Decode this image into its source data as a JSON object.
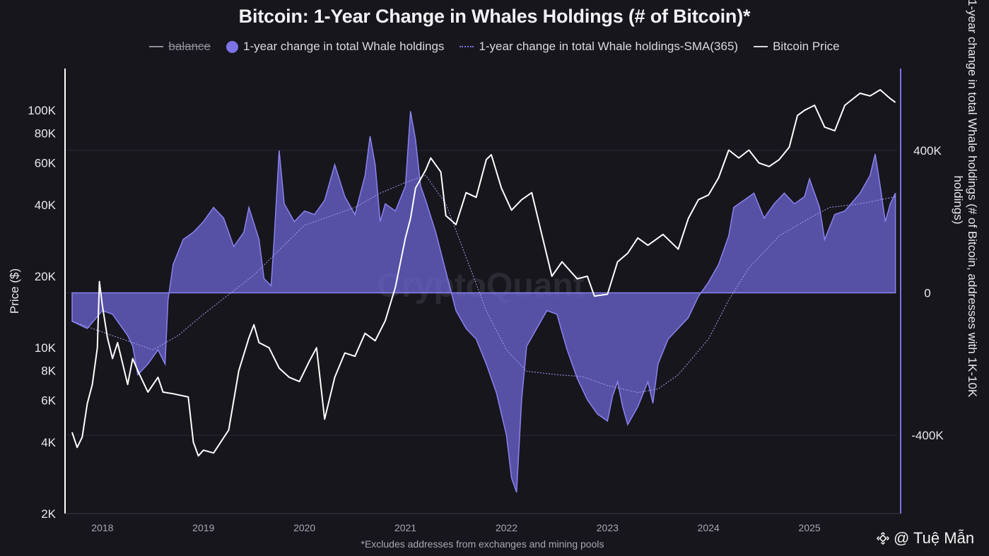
{
  "title": "Bitcoin: 1-Year Change in Whales Holdings (# of Bitcoin)*",
  "legend": [
    {
      "label": "balance",
      "marker": "line",
      "color": "#8e8e98",
      "disabled": true
    },
    {
      "label": "1-year change in total Whale holdings",
      "marker": "dot",
      "color": "#7b73e6"
    },
    {
      "label": "1-year change in total Whale holdings-SMA(365)",
      "marker": "dotted-line",
      "color": "#7b73e6"
    },
    {
      "label": "Bitcoin Price",
      "marker": "line",
      "color": "#ffffff"
    }
  ],
  "footnote": "*Excludes addresses from exchanges and mining pools",
  "watermark": "CryptoQuant",
  "brand": "@ Tuệ Mẫn",
  "colors": {
    "background": "#17161c",
    "area": "#6f68d9",
    "price": "#ffffff",
    "sma": "#8f88f0",
    "grid": "#2a2932"
  },
  "chart_data": {
    "type": "area",
    "x_axis": {
      "ticks": [
        "2018",
        "2019",
        "2020",
        "2021",
        "2022",
        "2023",
        "2024",
        "2025"
      ],
      "range": [
        "2017-09",
        "2025-11"
      ]
    },
    "y_left": {
      "label": "Price ($)",
      "scale": "log",
      "range": [
        2000,
        150000
      ],
      "ticks": [
        {
          "v": 2000,
          "t": "2K"
        },
        {
          "v": 4000,
          "t": "4K"
        },
        {
          "v": 6000,
          "t": "6K"
        },
        {
          "v": 8000,
          "t": "8K"
        },
        {
          "v": 10000,
          "t": "10K"
        },
        {
          "v": 20000,
          "t": "20K"
        },
        {
          "v": 40000,
          "t": "40K"
        },
        {
          "v": 60000,
          "t": "60K"
        },
        {
          "v": 80000,
          "t": "80K"
        },
        {
          "v": 100000,
          "t": "100K"
        }
      ]
    },
    "y_right": {
      "label": "1-year change in total Whale holdings (# of Bitcoin, addresses with 1K-10K holdings)",
      "range": [
        -620000,
        630000
      ],
      "ticks": [
        {
          "v": 400000,
          "t": "400K"
        },
        {
          "v": 0,
          "t": "0"
        },
        {
          "v": -400000,
          "t": "-400K"
        }
      ]
    },
    "grid": "horizontal",
    "series": [
      {
        "name": "1-year change in total Whale holdings",
        "type": "area",
        "axis": "right",
        "points": [
          [
            2017.7,
            -80000
          ],
          [
            2017.85,
            -100000
          ],
          [
            2018.0,
            -50000
          ],
          [
            2018.1,
            -60000
          ],
          [
            2018.25,
            -120000
          ],
          [
            2018.3,
            -150000
          ],
          [
            2018.35,
            -230000
          ],
          [
            2018.45,
            -200000
          ],
          [
            2018.55,
            -160000
          ],
          [
            2018.62,
            -200000
          ],
          [
            2018.65,
            -20000
          ],
          [
            2018.7,
            80000
          ],
          [
            2018.8,
            150000
          ],
          [
            2018.9,
            170000
          ],
          [
            2019.0,
            200000
          ],
          [
            2019.05,
            220000
          ],
          [
            2019.1,
            240000
          ],
          [
            2019.2,
            210000
          ],
          [
            2019.3,
            130000
          ],
          [
            2019.4,
            170000
          ],
          [
            2019.45,
            240000
          ],
          [
            2019.55,
            150000
          ],
          [
            2019.6,
            40000
          ],
          [
            2019.67,
            20000
          ],
          [
            2019.7,
            150000
          ],
          [
            2019.75,
            400000
          ],
          [
            2019.8,
            250000
          ],
          [
            2019.9,
            200000
          ],
          [
            2020.0,
            230000
          ],
          [
            2020.1,
            220000
          ],
          [
            2020.2,
            260000
          ],
          [
            2020.3,
            360000
          ],
          [
            2020.4,
            270000
          ],
          [
            2020.5,
            220000
          ],
          [
            2020.6,
            330000
          ],
          [
            2020.65,
            440000
          ],
          [
            2020.7,
            360000
          ],
          [
            2020.75,
            200000
          ],
          [
            2020.8,
            250000
          ],
          [
            2020.9,
            230000
          ],
          [
            2021.0,
            300000
          ],
          [
            2021.05,
            510000
          ],
          [
            2021.1,
            430000
          ],
          [
            2021.15,
            300000
          ],
          [
            2021.2,
            260000
          ],
          [
            2021.3,
            170000
          ],
          [
            2021.4,
            60000
          ],
          [
            2021.5,
            -50000
          ],
          [
            2021.6,
            -100000
          ],
          [
            2021.7,
            -130000
          ],
          [
            2021.8,
            -200000
          ],
          [
            2021.9,
            -280000
          ],
          [
            2022.0,
            -400000
          ],
          [
            2022.05,
            -520000
          ],
          [
            2022.1,
            -560000
          ],
          [
            2022.15,
            -300000
          ],
          [
            2022.2,
            -150000
          ],
          [
            2022.3,
            -100000
          ],
          [
            2022.4,
            -50000
          ],
          [
            2022.5,
            -60000
          ],
          [
            2022.55,
            -110000
          ],
          [
            2022.6,
            -160000
          ],
          [
            2022.7,
            -240000
          ],
          [
            2022.8,
            -300000
          ],
          [
            2022.9,
            -340000
          ],
          [
            2023.0,
            -360000
          ],
          [
            2023.05,
            -290000
          ],
          [
            2023.1,
            -250000
          ],
          [
            2023.15,
            -320000
          ],
          [
            2023.2,
            -370000
          ],
          [
            2023.3,
            -320000
          ],
          [
            2023.4,
            -250000
          ],
          [
            2023.45,
            -310000
          ],
          [
            2023.5,
            -200000
          ],
          [
            2023.6,
            -130000
          ],
          [
            2023.7,
            -100000
          ],
          [
            2023.8,
            -70000
          ],
          [
            2023.9,
            -10000
          ],
          [
            2024.0,
            30000
          ],
          [
            2024.1,
            80000
          ],
          [
            2024.2,
            160000
          ],
          [
            2024.25,
            240000
          ],
          [
            2024.35,
            260000
          ],
          [
            2024.45,
            280000
          ],
          [
            2024.55,
            210000
          ],
          [
            2024.65,
            250000
          ],
          [
            2024.75,
            280000
          ],
          [
            2024.85,
            250000
          ],
          [
            2024.95,
            270000
          ],
          [
            2025.0,
            320000
          ],
          [
            2025.1,
            240000
          ],
          [
            2025.15,
            150000
          ],
          [
            2025.25,
            220000
          ],
          [
            2025.35,
            230000
          ],
          [
            2025.5,
            280000
          ],
          [
            2025.6,
            330000
          ],
          [
            2025.65,
            390000
          ],
          [
            2025.7,
            300000
          ],
          [
            2025.75,
            200000
          ],
          [
            2025.8,
            250000
          ],
          [
            2025.85,
            280000
          ]
        ]
      },
      {
        "name": "1-year change in total Whale holdings-SMA(365)",
        "type": "line",
        "axis": "right",
        "points": [
          [
            2017.7,
            -80000
          ],
          [
            2018.0,
            -110000
          ],
          [
            2018.5,
            -160000
          ],
          [
            2018.75,
            -120000
          ],
          [
            2019.0,
            -60000
          ],
          [
            2019.5,
            50000
          ],
          [
            2019.75,
            120000
          ],
          [
            2020.0,
            190000
          ],
          [
            2020.5,
            240000
          ],
          [
            2020.75,
            280000
          ],
          [
            2021.0,
            310000
          ],
          [
            2021.2,
            330000
          ],
          [
            2021.4,
            250000
          ],
          [
            2021.6,
            100000
          ],
          [
            2021.8,
            -50000
          ],
          [
            2022.0,
            -160000
          ],
          [
            2022.2,
            -220000
          ],
          [
            2022.5,
            -230000
          ],
          [
            2022.75,
            -235000
          ],
          [
            2023.0,
            -260000
          ],
          [
            2023.3,
            -280000
          ],
          [
            2023.5,
            -270000
          ],
          [
            2023.7,
            -230000
          ],
          [
            2024.0,
            -130000
          ],
          [
            2024.2,
            -20000
          ],
          [
            2024.4,
            70000
          ],
          [
            2024.7,
            160000
          ],
          [
            2025.0,
            210000
          ],
          [
            2025.2,
            240000
          ],
          [
            2025.5,
            250000
          ],
          [
            2025.85,
            270000
          ]
        ]
      },
      {
        "name": "Bitcoin Price",
        "type": "line",
        "axis": "left",
        "points": [
          [
            2017.7,
            4400
          ],
          [
            2017.75,
            3800
          ],
          [
            2017.8,
            4200
          ],
          [
            2017.85,
            5800
          ],
          [
            2017.9,
            7000
          ],
          [
            2017.95,
            10000
          ],
          [
            2017.97,
            19000
          ],
          [
            2018.0,
            15000
          ],
          [
            2018.05,
            11000
          ],
          [
            2018.1,
            9000
          ],
          [
            2018.15,
            10500
          ],
          [
            2018.25,
            7000
          ],
          [
            2018.3,
            9000
          ],
          [
            2018.35,
            8000
          ],
          [
            2018.45,
            6500
          ],
          [
            2018.55,
            7500
          ],
          [
            2018.6,
            6500
          ],
          [
            2018.7,
            6400
          ],
          [
            2018.85,
            6200
          ],
          [
            2018.9,
            4000
          ],
          [
            2018.95,
            3500
          ],
          [
            2019.0,
            3700
          ],
          [
            2019.1,
            3600
          ],
          [
            2019.25,
            4500
          ],
          [
            2019.35,
            8000
          ],
          [
            2019.45,
            11000
          ],
          [
            2019.5,
            12500
          ],
          [
            2019.55,
            10500
          ],
          [
            2019.65,
            10000
          ],
          [
            2019.75,
            8200
          ],
          [
            2019.85,
            7500
          ],
          [
            2019.95,
            7200
          ],
          [
            2020.05,
            8800
          ],
          [
            2020.12,
            10000
          ],
          [
            2020.2,
            5000
          ],
          [
            2020.3,
            7500
          ],
          [
            2020.4,
            9500
          ],
          [
            2020.5,
            9200
          ],
          [
            2020.6,
            11500
          ],
          [
            2020.7,
            10700
          ],
          [
            2020.8,
            13000
          ],
          [
            2020.9,
            18000
          ],
          [
            2021.0,
            29000
          ],
          [
            2021.05,
            35000
          ],
          [
            2021.1,
            47000
          ],
          [
            2021.2,
            56000
          ],
          [
            2021.25,
            63000
          ],
          [
            2021.35,
            55000
          ],
          [
            2021.4,
            36000
          ],
          [
            2021.5,
            33000
          ],
          [
            2021.6,
            45000
          ],
          [
            2021.7,
            43000
          ],
          [
            2021.8,
            62000
          ],
          [
            2021.85,
            65000
          ],
          [
            2021.95,
            47000
          ],
          [
            2022.05,
            38000
          ],
          [
            2022.15,
            42000
          ],
          [
            2022.25,
            45000
          ],
          [
            2022.35,
            30000
          ],
          [
            2022.45,
            20000
          ],
          [
            2022.55,
            23000
          ],
          [
            2022.7,
            19500
          ],
          [
            2022.8,
            20000
          ],
          [
            2022.87,
            16500
          ],
          [
            2023.0,
            16800
          ],
          [
            2023.1,
            23000
          ],
          [
            2023.2,
            25000
          ],
          [
            2023.3,
            29000
          ],
          [
            2023.4,
            27000
          ],
          [
            2023.55,
            30000
          ],
          [
            2023.7,
            26000
          ],
          [
            2023.8,
            35000
          ],
          [
            2023.9,
            42000
          ],
          [
            2024.0,
            44000
          ],
          [
            2024.1,
            52000
          ],
          [
            2024.2,
            68000
          ],
          [
            2024.3,
            63000
          ],
          [
            2024.4,
            68000
          ],
          [
            2024.5,
            60000
          ],
          [
            2024.6,
            58000
          ],
          [
            2024.7,
            62000
          ],
          [
            2024.8,
            70000
          ],
          [
            2024.88,
            95000
          ],
          [
            2024.95,
            100000
          ],
          [
            2025.05,
            105000
          ],
          [
            2025.15,
            85000
          ],
          [
            2025.25,
            82000
          ],
          [
            2025.35,
            105000
          ],
          [
            2025.5,
            118000
          ],
          [
            2025.6,
            115000
          ],
          [
            2025.7,
            122000
          ],
          [
            2025.8,
            112000
          ],
          [
            2025.85,
            108000
          ]
        ]
      }
    ]
  }
}
